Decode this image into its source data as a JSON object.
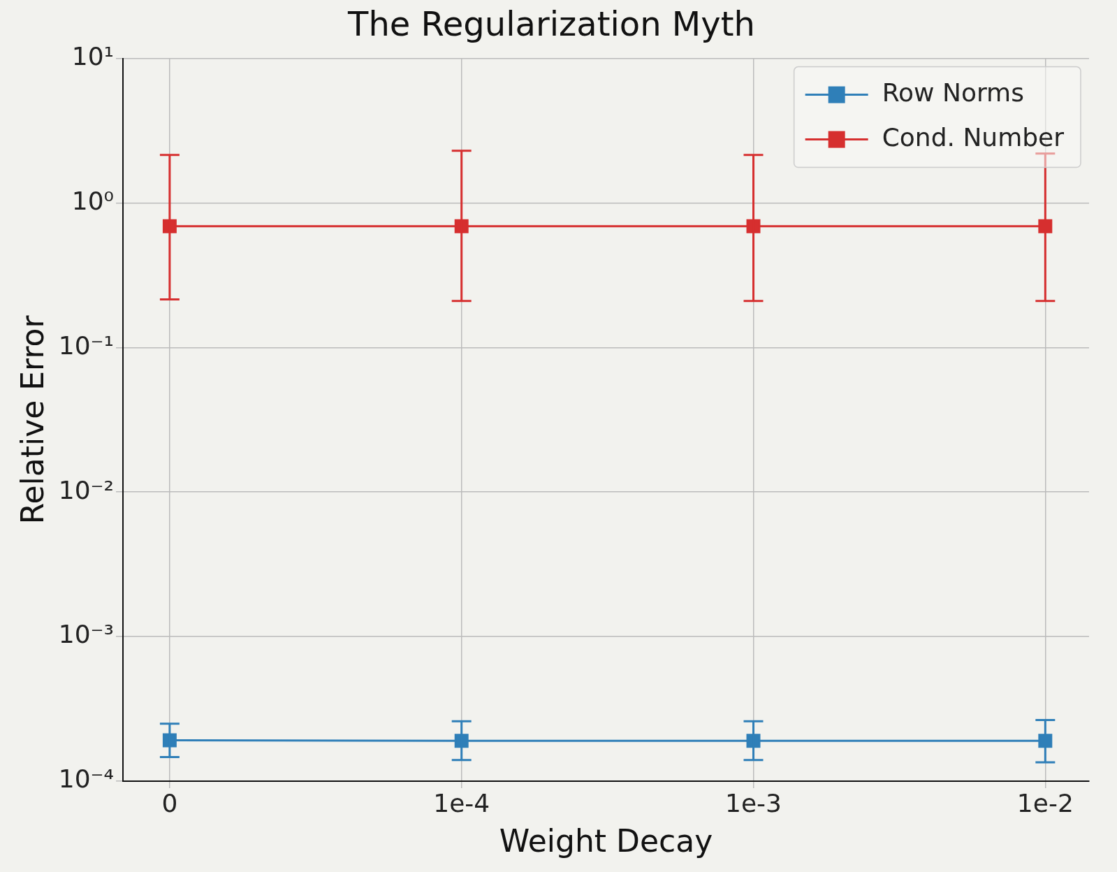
{
  "chart_data": {
    "type": "line",
    "title": "The Regularization Myth",
    "xlabel": "Weight Decay",
    "ylabel": "Relative Error",
    "categories": [
      "0",
      "1e-4",
      "1e-3",
      "1e-2"
    ],
    "series": [
      {
        "name": "Row Norms",
        "color": "#2f7fb8",
        "values": [
          0.000192,
          0.00019,
          0.00019,
          0.00019
        ],
        "errors": [
          [
            0.000147,
            0.00025
          ],
          [
            0.00014,
            0.00026
          ],
          [
            0.00014,
            0.00026
          ],
          [
            0.000135,
            0.000265
          ]
        ]
      },
      {
        "name": "Cond. Number",
        "color": "#d62f2f",
        "values": [
          0.69,
          0.69,
          0.69,
          0.69
        ],
        "errors": [
          [
            0.215,
            2.15
          ],
          [
            0.21,
            2.3
          ],
          [
            0.21,
            2.15
          ],
          [
            0.21,
            2.2
          ]
        ]
      }
    ],
    "log": "y",
    "ylim": [
      0.0001,
      10
    ],
    "yticks": [
      {
        "value": 0.0001,
        "label": "10⁻⁴"
      },
      {
        "value": 0.001,
        "label": "10⁻³"
      },
      {
        "value": 0.01,
        "label": "10⁻²"
      },
      {
        "value": 0.1,
        "label": "10⁻¹"
      },
      {
        "value": 1,
        "label": "10⁰"
      },
      {
        "value": 10,
        "label": "10¹"
      }
    ],
    "grid": true,
    "legend": "top right",
    "marker": "square",
    "line_style": "solid"
  }
}
